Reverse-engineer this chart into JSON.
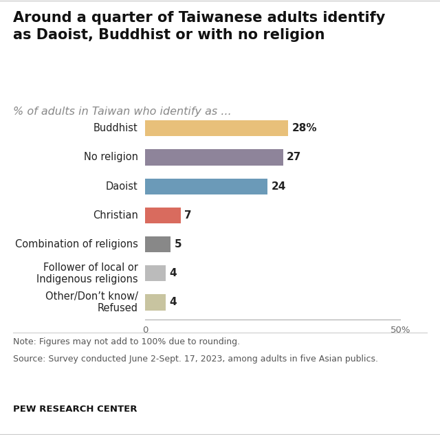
{
  "title": "Around a quarter of Taiwanese adults identify\nas Daoist, Buddhist or with no religion",
  "subtitle": "% of adults in Taiwan who identify as ...",
  "categories": [
    "Buddhist",
    "No religion",
    "Daoist",
    "Christian",
    "Combination of religions",
    "Follower of local or\nIndigenous religions",
    "Other/Don’t know/\nRefused"
  ],
  "values": [
    28,
    27,
    24,
    7,
    5,
    4,
    4
  ],
  "bar_colors": [
    "#E8C07A",
    "#8E849A",
    "#6B9AB8",
    "#D96B5E",
    "#888888",
    "#BBBBBB",
    "#C8C4A0"
  ],
  "value_labels": [
    "28%",
    "27",
    "24",
    "7",
    "5",
    "4",
    "4"
  ],
  "xlim": [
    0,
    50
  ],
  "xticks": [
    0,
    50
  ],
  "xticklabels": [
    "0",
    "50%"
  ],
  "note_line1": "Note: Figures may not add to 100% due to rounding.",
  "note_line2": "Source: Survey conducted June 2-Sept. 17, 2023, among adults in five Asian publics.",
  "footer": "PEW RESEARCH CENTER",
  "background_color": "#FFFFFF",
  "title_fontsize": 15,
  "subtitle_fontsize": 11.5,
  "bar_height": 0.55,
  "value_fontsize": 11,
  "category_fontsize": 10.5,
  "note_fontsize": 9,
  "footer_fontsize": 9.5
}
